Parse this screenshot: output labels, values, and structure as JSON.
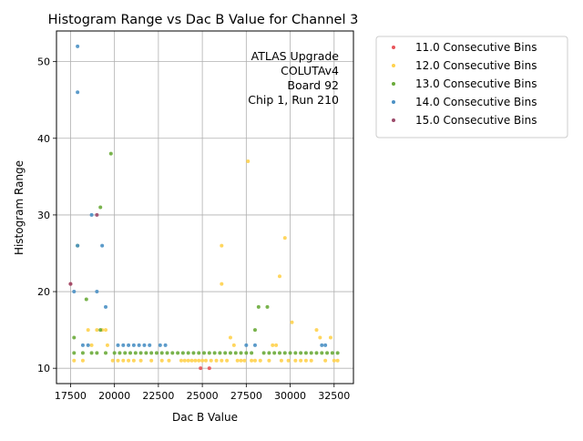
{
  "chart_data": {
    "type": "scatter",
    "title": "Histogram Range vs Dac B Value for Channel 3",
    "xlabel": "Dac B Value",
    "ylabel": "Histogram Range",
    "xlim": [
      16700,
      33600
    ],
    "ylim": [
      8,
      54
    ],
    "xticks": [
      17500,
      20000,
      22500,
      25000,
      27500,
      30000,
      32500
    ],
    "yticks": [
      10,
      20,
      30,
      40,
      50
    ],
    "grid": true,
    "annotation": [
      "ATLAS Upgrade",
      "COLUTAv4",
      "Board 92",
      "Chip 1, Run 210"
    ],
    "legend_position": "outside-right",
    "series": [
      {
        "name": "11.0 Consecutive Bins",
        "color": "#e8555a",
        "points": [
          [
            17500,
            21
          ],
          [
            24900,
            10
          ],
          [
            25400,
            10
          ]
        ]
      },
      {
        "name": "12.0 Consecutive Bins",
        "color": "#ffd24d",
        "points": [
          [
            17700,
            11
          ],
          [
            18200,
            11
          ],
          [
            18500,
            15
          ],
          [
            18700,
            13
          ],
          [
            19000,
            15
          ],
          [
            19300,
            15
          ],
          [
            19500,
            15
          ],
          [
            19600,
            13
          ],
          [
            19900,
            11
          ],
          [
            20200,
            11
          ],
          [
            20500,
            11
          ],
          [
            20800,
            11
          ],
          [
            21100,
            11
          ],
          [
            21500,
            11
          ],
          [
            22100,
            11
          ],
          [
            22700,
            11
          ],
          [
            23100,
            11
          ],
          [
            23800,
            11
          ],
          [
            24000,
            11
          ],
          [
            24200,
            11
          ],
          [
            24400,
            11
          ],
          [
            24600,
            11
          ],
          [
            24800,
            11
          ],
          [
            25000,
            11
          ],
          [
            25200,
            11
          ],
          [
            25500,
            11
          ],
          [
            25800,
            11
          ],
          [
            26100,
            11
          ],
          [
            26100,
            26
          ],
          [
            26100,
            21
          ],
          [
            26400,
            11
          ],
          [
            26600,
            14
          ],
          [
            26800,
            13
          ],
          [
            27000,
            11
          ],
          [
            27200,
            11
          ],
          [
            27400,
            11
          ],
          [
            27600,
            37
          ],
          [
            27800,
            11
          ],
          [
            28000,
            11
          ],
          [
            28300,
            11
          ],
          [
            28800,
            11
          ],
          [
            29000,
            13
          ],
          [
            29200,
            13
          ],
          [
            29400,
            22
          ],
          [
            29500,
            11
          ],
          [
            29700,
            27
          ],
          [
            29900,
            11
          ],
          [
            30100,
            16
          ],
          [
            30300,
            11
          ],
          [
            30600,
            11
          ],
          [
            30900,
            11
          ],
          [
            31200,
            11
          ],
          [
            31500,
            15
          ],
          [
            31700,
            14
          ],
          [
            32000,
            11
          ],
          [
            32300,
            14
          ],
          [
            32500,
            11
          ],
          [
            32700,
            11
          ]
        ]
      },
      {
        "name": "13.0 Consecutive Bins",
        "color": "#6aab3a",
        "points": [
          [
            17700,
            14
          ],
          [
            17700,
            12
          ],
          [
            17900,
            26
          ],
          [
            18200,
            12
          ],
          [
            18400,
            19
          ],
          [
            18700,
            12
          ],
          [
            19000,
            12
          ],
          [
            19200,
            31
          ],
          [
            19200,
            15
          ],
          [
            19500,
            12
          ],
          [
            19800,
            38
          ],
          [
            20000,
            12
          ],
          [
            20300,
            12
          ],
          [
            20600,
            12
          ],
          [
            20900,
            12
          ],
          [
            21200,
            12
          ],
          [
            21500,
            12
          ],
          [
            21800,
            12
          ],
          [
            22100,
            12
          ],
          [
            22400,
            12
          ],
          [
            22700,
            12
          ],
          [
            23000,
            12
          ],
          [
            23300,
            12
          ],
          [
            23600,
            12
          ],
          [
            23900,
            12
          ],
          [
            24200,
            12
          ],
          [
            24500,
            12
          ],
          [
            24800,
            12
          ],
          [
            25100,
            12
          ],
          [
            25400,
            12
          ],
          [
            25700,
            12
          ],
          [
            26000,
            12
          ],
          [
            26300,
            12
          ],
          [
            26600,
            12
          ],
          [
            26900,
            12
          ],
          [
            27200,
            12
          ],
          [
            27500,
            12
          ],
          [
            27800,
            12
          ],
          [
            28000,
            15
          ],
          [
            28200,
            18
          ],
          [
            28500,
            12
          ],
          [
            28700,
            18
          ],
          [
            28800,
            12
          ],
          [
            29100,
            12
          ],
          [
            29400,
            12
          ],
          [
            29700,
            12
          ],
          [
            30000,
            12
          ],
          [
            30300,
            12
          ],
          [
            30600,
            12
          ],
          [
            30900,
            12
          ],
          [
            31200,
            12
          ],
          [
            31500,
            12
          ],
          [
            31800,
            12
          ],
          [
            32100,
            12
          ],
          [
            32400,
            12
          ],
          [
            32700,
            12
          ]
        ]
      },
      {
        "name": "14.0 Consecutive Bins",
        "color": "#4a90c4",
        "points": [
          [
            17700,
            20
          ],
          [
            17900,
            52
          ],
          [
            17900,
            46
          ],
          [
            17900,
            26
          ],
          [
            18200,
            13
          ],
          [
            18500,
            13
          ],
          [
            18700,
            30
          ],
          [
            19000,
            20
          ],
          [
            19300,
            26
          ],
          [
            19500,
            18
          ],
          [
            20200,
            13
          ],
          [
            20500,
            13
          ],
          [
            20800,
            13
          ],
          [
            21100,
            13
          ],
          [
            21400,
            13
          ],
          [
            21700,
            13
          ],
          [
            22000,
            13
          ],
          [
            22600,
            13
          ],
          [
            22900,
            13
          ],
          [
            27500,
            13
          ],
          [
            28000,
            13
          ],
          [
            31800,
            13
          ],
          [
            32000,
            13
          ]
        ]
      },
      {
        "name": "15.0 Consecutive Bins",
        "color": "#9c4a6a",
        "points": [
          [
            17500,
            21
          ],
          [
            19000,
            30
          ]
        ]
      }
    ]
  }
}
